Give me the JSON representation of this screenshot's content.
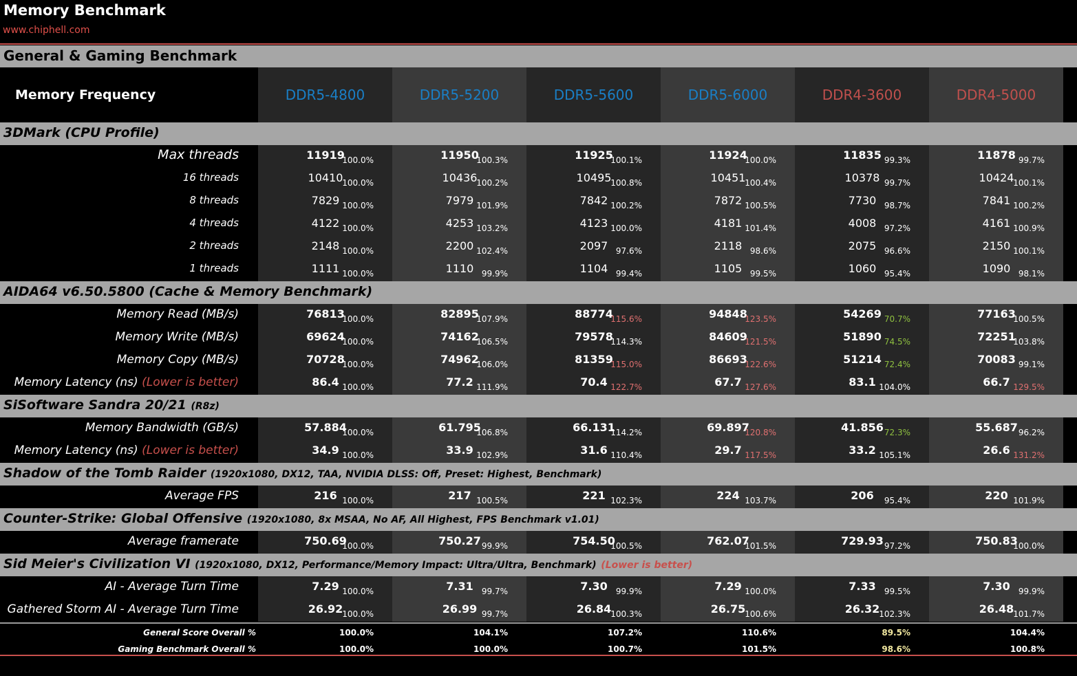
{
  "header": {
    "title": "Memory Benchmark",
    "site": "www.chiphell.com"
  },
  "sections_header": {
    "title": "General & Gaming Benchmark"
  },
  "table_header": {
    "label": "Memory Frequency"
  },
  "colors": {
    "ddr5": "#1a7fc6",
    "ddr4": "#c0504d",
    "band": "#a6a6a6",
    "pct_high": "#e07070",
    "pct_low": "#8fc040"
  },
  "chart_data": {
    "type": "table",
    "columns": [
      {
        "label": "DDR5-4800",
        "kind": "ddr5"
      },
      {
        "label": "DDR5-5200",
        "kind": "ddr5"
      },
      {
        "label": "DDR5-5600",
        "kind": "ddr5"
      },
      {
        "label": "DDR5-6000",
        "kind": "ddr5"
      },
      {
        "label": "DDR4-3600",
        "kind": "ddr4"
      },
      {
        "label": "DDR4-5000",
        "kind": "ddr4"
      }
    ],
    "groups": [
      {
        "title": "3DMark (CPU Profile)",
        "subtitle": "",
        "note": "",
        "rows": [
          {
            "label": "Max threads",
            "note": "",
            "bold": true,
            "size": 19,
            "values": [
              "11919",
              "11950",
              "11925",
              "11924",
              "11835",
              "11878"
            ],
            "pct": [
              "100.0%",
              "100.3%",
              "100.1%",
              "100.0%",
              "99.3%",
              "99.7%"
            ],
            "pct_tone": [
              "n",
              "n",
              "n",
              "n",
              "n",
              "n"
            ]
          },
          {
            "label": "16 threads",
            "note": "",
            "bold": false,
            "size": 15,
            "values": [
              "10410",
              "10436",
              "10495",
              "10451",
              "10378",
              "10424"
            ],
            "pct": [
              "100.0%",
              "100.2%",
              "100.8%",
              "100.4%",
              "99.7%",
              "100.1%"
            ],
            "pct_tone": [
              "n",
              "n",
              "n",
              "n",
              "n",
              "n"
            ]
          },
          {
            "label": "8 threads",
            "note": "",
            "bold": false,
            "size": 15,
            "values": [
              "7829",
              "7979",
              "7842",
              "7872",
              "7730",
              "7841"
            ],
            "pct": [
              "100.0%",
              "101.9%",
              "100.2%",
              "100.5%",
              "98.7%",
              "100.2%"
            ],
            "pct_tone": [
              "n",
              "n",
              "n",
              "n",
              "n",
              "n"
            ]
          },
          {
            "label": "4 threads",
            "note": "",
            "bold": false,
            "size": 15,
            "values": [
              "4122",
              "4253",
              "4123",
              "4181",
              "4008",
              "4161"
            ],
            "pct": [
              "100.0%",
              "103.2%",
              "100.0%",
              "101.4%",
              "97.2%",
              "100.9%"
            ],
            "pct_tone": [
              "n",
              "n",
              "n",
              "n",
              "n",
              "n"
            ]
          },
          {
            "label": "2 threads",
            "note": "",
            "bold": false,
            "size": 15,
            "values": [
              "2148",
              "2200",
              "2097",
              "2118",
              "2075",
              "2150"
            ],
            "pct": [
              "100.0%",
              "102.4%",
              "97.6%",
              "98.6%",
              "96.6%",
              "100.1%"
            ],
            "pct_tone": [
              "n",
              "n",
              "n",
              "n",
              "n",
              "n"
            ]
          },
          {
            "label": "1 threads",
            "note": "",
            "bold": false,
            "size": 15,
            "values": [
              "1111",
              "1110",
              "1104",
              "1105",
              "1060",
              "1090"
            ],
            "pct": [
              "100.0%",
              "99.9%",
              "99.4%",
              "99.5%",
              "95.4%",
              "98.1%"
            ],
            "pct_tone": [
              "n",
              "n",
              "n",
              "n",
              "n",
              "n"
            ]
          }
        ]
      },
      {
        "title": "AIDA64 v6.50.5800 (Cache & Memory Benchmark)",
        "subtitle": "",
        "note": "",
        "rows": [
          {
            "label": "Memory Read (MB/s)",
            "note": "",
            "bold": true,
            "size": 17,
            "values": [
              "76813",
              "82895",
              "88774",
              "94848",
              "54269",
              "77163"
            ],
            "pct": [
              "100.0%",
              "107.9%",
              "115.6%",
              "123.5%",
              "70.7%",
              "100.5%"
            ],
            "pct_tone": [
              "n",
              "n",
              "h",
              "h",
              "l",
              "n"
            ]
          },
          {
            "label": "Memory Write (MB/s)",
            "note": "",
            "bold": true,
            "size": 17,
            "values": [
              "69624",
              "74162",
              "79578",
              "84609",
              "51890",
              "72251"
            ],
            "pct": [
              "100.0%",
              "106.5%",
              "114.3%",
              "121.5%",
              "74.5%",
              "103.8%"
            ],
            "pct_tone": [
              "n",
              "n",
              "n",
              "h",
              "l",
              "n"
            ]
          },
          {
            "label": "Memory Copy (MB/s)",
            "note": "",
            "bold": true,
            "size": 17,
            "values": [
              "70728",
              "74962",
              "81359",
              "86693",
              "51214",
              "70083"
            ],
            "pct": [
              "100.0%",
              "106.0%",
              "115.0%",
              "122.6%",
              "72.4%",
              "99.1%"
            ],
            "pct_tone": [
              "n",
              "n",
              "h",
              "h",
              "l",
              "n"
            ]
          },
          {
            "label": "Memory Latency (ns)",
            "note": "(Lower is better)",
            "bold": true,
            "size": 17,
            "values": [
              "86.4",
              "77.2",
              "70.4",
              "67.7",
              "83.1",
              "66.7"
            ],
            "pct": [
              "100.0%",
              "111.9%",
              "122.7%",
              "127.6%",
              "104.0%",
              "129.5%"
            ],
            "pct_tone": [
              "n",
              "n",
              "h",
              "h",
              "n",
              "h"
            ]
          }
        ]
      },
      {
        "title": "SiSoftware Sandra 20/21",
        "subtitle": "(R8z)",
        "note": "",
        "rows": [
          {
            "label": "Memory Bandwidth (GB/s)",
            "note": "",
            "bold": true,
            "size": 17,
            "values": [
              "57.884",
              "61.795",
              "66.131",
              "69.897",
              "41.856",
              "55.687"
            ],
            "pct": [
              "100.0%",
              "106.8%",
              "114.2%",
              "120.8%",
              "72.3%",
              "96.2%"
            ],
            "pct_tone": [
              "n",
              "n",
              "n",
              "h",
              "l",
              "n"
            ]
          },
          {
            "label": "Memory Latency (ns)",
            "note": "(Lower is better)",
            "bold": true,
            "size": 17,
            "values": [
              "34.9",
              "33.9",
              "31.6",
              "29.7",
              "33.2",
              "26.6"
            ],
            "pct": [
              "100.0%",
              "102.9%",
              "110.4%",
              "117.5%",
              "105.1%",
              "131.2%"
            ],
            "pct_tone": [
              "n",
              "n",
              "n",
              "h",
              "n",
              "h"
            ]
          }
        ]
      },
      {
        "title": "Shadow of the Tomb Raider",
        "subtitle": "(1920x1080, DX12, TAA, NVIDIA DLSS: Off, Preset: Highest, Benchmark)",
        "note": "",
        "rows": [
          {
            "label": "Average FPS",
            "note": "",
            "bold": true,
            "size": 17,
            "values": [
              "216",
              "217",
              "221",
              "224",
              "206",
              "220"
            ],
            "pct": [
              "100.0%",
              "100.5%",
              "102.3%",
              "103.7%",
              "95.4%",
              "101.9%"
            ],
            "pct_tone": [
              "n",
              "n",
              "n",
              "n",
              "n",
              "n"
            ]
          }
        ]
      },
      {
        "title": "Counter-Strike: Global Offensive",
        "subtitle": "(1920x1080, 8x MSAA, No AF, All Highest, FPS Benchmark v1.01)",
        "note": "",
        "rows": [
          {
            "label": "Average framerate",
            "note": "",
            "bold": true,
            "size": 17,
            "values": [
              "750.69",
              "750.27",
              "754.50",
              "762.07",
              "729.93",
              "750.83"
            ],
            "pct": [
              "100.0%",
              "99.9%",
              "100.5%",
              "101.5%",
              "97.2%",
              "100.0%"
            ],
            "pct_tone": [
              "n",
              "n",
              "n",
              "n",
              "n",
              "n"
            ]
          }
        ]
      },
      {
        "title": "Sid Meier's Civilization VI",
        "subtitle": "(1920x1080, DX12, Performance/Memory Impact: Ultra/Ultra, Benchmark)",
        "note": "(Lower is better)",
        "rows": [
          {
            "label": "AI - Average Turn Time",
            "note": "",
            "bold": true,
            "size": 17,
            "values": [
              "7.29",
              "7.31",
              "7.30",
              "7.29",
              "7.33",
              "7.30"
            ],
            "pct": [
              "100.0%",
              "99.7%",
              "99.9%",
              "100.0%",
              "99.5%",
              "99.9%"
            ],
            "pct_tone": [
              "n",
              "n",
              "n",
              "n",
              "n",
              "n"
            ]
          },
          {
            "label": "Gathered Storm AI - Average Turn Time",
            "note": "",
            "bold": true,
            "size": 17,
            "values": [
              "26.92",
              "26.99",
              "26.84",
              "26.75",
              "26.32",
              "26.48"
            ],
            "pct": [
              "100.0%",
              "99.7%",
              "100.3%",
              "100.6%",
              "102.3%",
              "101.7%"
            ],
            "pct_tone": [
              "n",
              "n",
              "n",
              "n",
              "n",
              "n"
            ]
          }
        ]
      }
    ],
    "summary": [
      {
        "label": "General Score Overall %",
        "pct": [
          "100.0%",
          "104.1%",
          "107.2%",
          "110.6%",
          "89.5%",
          "104.4%"
        ],
        "pct_tone": [
          "n",
          "n",
          "n",
          "n",
          "y",
          "n"
        ]
      },
      {
        "label": "Gaming Benchmark Overall %",
        "pct": [
          "100.0%",
          "100.0%",
          "100.7%",
          "101.5%",
          "98.6%",
          "100.8%"
        ],
        "pct_tone": [
          "n",
          "n",
          "n",
          "n",
          "y",
          "n"
        ]
      }
    ]
  }
}
